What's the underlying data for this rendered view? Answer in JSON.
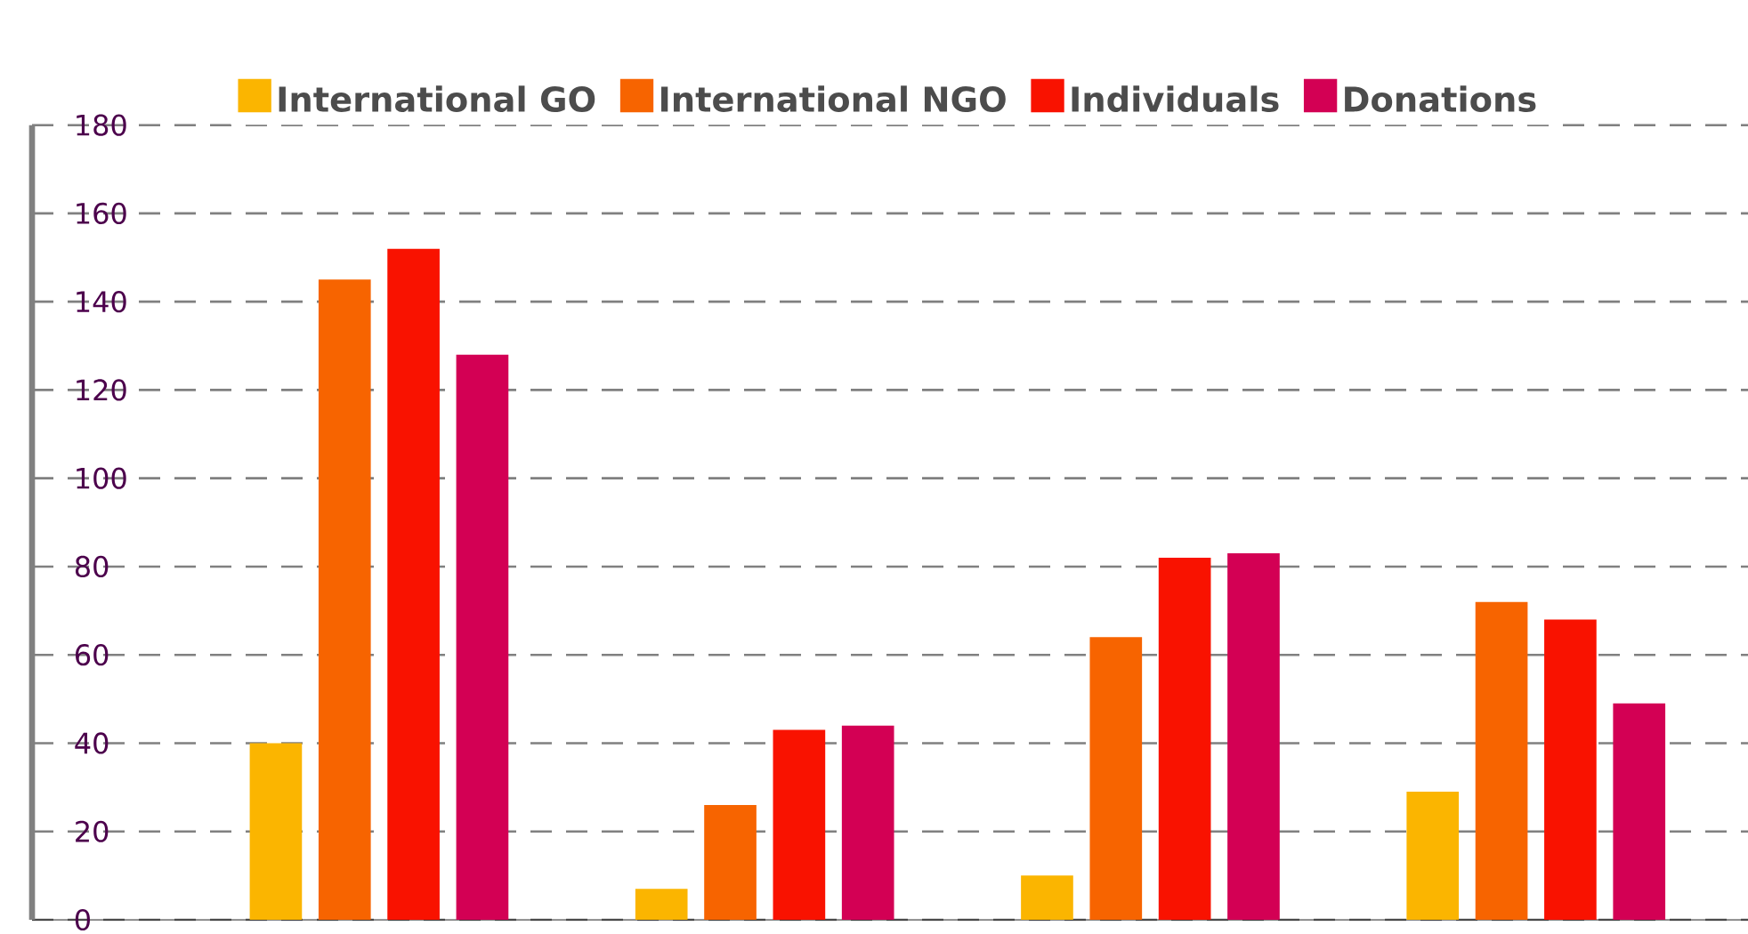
{
  "chart_data": {
    "type": "bar",
    "categories": [
      null,
      null,
      null,
      null
    ],
    "series": [
      {
        "name": "International GO",
        "color": "#fbb500",
        "values": [
          40,
          7,
          10,
          29
        ]
      },
      {
        "name": "International NGO",
        "color": "#f76400",
        "values": [
          145,
          26,
          64,
          72
        ]
      },
      {
        "name": "Individuals",
        "color": "#f91200",
        "values": [
          152,
          43,
          82,
          68
        ]
      },
      {
        "name": "Donations",
        "color": "#d30054",
        "values": [
          128,
          44,
          83,
          49
        ]
      }
    ],
    "ylim": [
      0,
      180
    ],
    "yticks": [
      0,
      20,
      40,
      60,
      80,
      100,
      120,
      140,
      160,
      180
    ],
    "grid": "y",
    "legend": "top"
  }
}
